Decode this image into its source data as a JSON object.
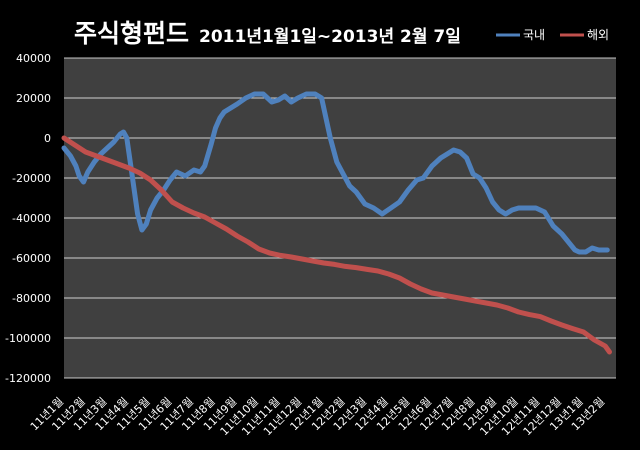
{
  "chart_data": {
    "type": "line",
    "title": "주식형펀드",
    "subtitle": "2011년1월1일~2013년 2월 7일",
    "ylim": [
      -120000,
      40000
    ],
    "yticks": [
      40000,
      20000,
      0,
      -20000,
      -40000,
      -60000,
      -80000,
      -100000,
      -120000
    ],
    "ytick_labels": [
      "40000",
      "20000",
      "0",
      "-20000",
      "-40000",
      "-60000",
      "-80000",
      "-100000",
      "-120000"
    ],
    "categories": [
      "11년1월",
      "11년2월",
      "11년3월",
      "11년4월",
      "11년5월",
      "11년6월",
      "11년7월",
      "11년8월",
      "11년9월",
      "11년10월",
      "11년11월",
      "11년12월",
      "12년1월",
      "12년2월",
      "12년3월",
      "12년4월",
      "12년5월",
      "12년6월",
      "12년7월",
      "12년8월",
      "12년9월",
      "12년10월",
      "12년11월",
      "12년12월",
      "13년1월",
      "13년2월"
    ],
    "legend_position": "top-right",
    "series": [
      {
        "name": "국내",
        "color": "#4F81BD",
        "x": [
          0,
          0.3,
          0.55,
          0.7,
          0.9,
          1.1,
          1.4,
          1.7,
          2.0,
          2.3,
          2.45,
          2.6,
          2.75,
          2.9,
          3.1,
          3.4,
          3.6,
          3.8,
          4.0,
          4.3,
          4.6,
          4.9,
          5.2,
          5.6,
          6.0,
          6.3,
          6.5,
          6.8,
          7.0,
          7.2,
          7.4,
          7.7,
          8.0,
          8.4,
          8.8,
          9.2,
          9.6,
          9.9,
          10.2,
          10.5,
          10.8,
          11.2,
          11.6,
          11.9,
          12.3,
          12.6,
          12.9,
          13.2,
          13.5,
          13.9,
          14.3,
          14.7,
          15.1,
          15.5,
          15.9,
          16.3,
          16.6,
          17.0,
          17.4,
          17.7,
          18.0,
          18.3,
          18.6,
          18.9,
          19.2,
          19.5,
          19.8,
          20.1,
          20.4,
          20.7,
          21.0,
          21.4,
          21.8,
          22.2,
          22.6,
          23.0,
          23.3,
          23.6,
          23.8,
          24.1,
          24.4,
          24.7,
          24.9,
          25.1
        ],
        "values": [
          -5000,
          -9000,
          -14000,
          -19000,
          -22000,
          -17000,
          -12000,
          -8000,
          -5000,
          -2000,
          0,
          2000,
          3000,
          0,
          -15000,
          -38000,
          -46000,
          -43000,
          -36000,
          -30000,
          -26000,
          -21000,
          -17000,
          -19000,
          -16000,
          -17000,
          -14000,
          -3000,
          5000,
          10000,
          13000,
          15000,
          17000,
          20000,
          22000,
          22000,
          18000,
          19000,
          21000,
          18000,
          20000,
          22000,
          22000,
          20000,
          0,
          -12000,
          -18000,
          -24000,
          -27000,
          -33000,
          -35000,
          -38000,
          -35000,
          -32000,
          -26000,
          -21000,
          -20000,
          -14000,
          -10000,
          -8000,
          -6000,
          -7000,
          -10000,
          -18000,
          -20000,
          -25000,
          -32000,
          -36000,
          -38000,
          -36000,
          -35000,
          -35000,
          -35000,
          -37000,
          -44000,
          -48000,
          -52000,
          -56000,
          -57000,
          -57000,
          -55000,
          -56000,
          -56000,
          -56000
        ]
      },
      {
        "name": "해외",
        "color": "#C0504D",
        "x": [
          0,
          0.5,
          1.0,
          1.5,
          2.0,
          2.5,
          3.0,
          3.5,
          4.0,
          4.5,
          5.0,
          5.5,
          6.0,
          6.5,
          7.0,
          7.5,
          8.0,
          8.5,
          9.0,
          9.5,
          10.0,
          10.5,
          11.0,
          11.5,
          12.0,
          12.5,
          13.0,
          13.5,
          14.0,
          14.5,
          15.0,
          15.5,
          16.0,
          16.5,
          17.0,
          17.5,
          18.0,
          18.5,
          19.0,
          19.5,
          20.0,
          20.5,
          21.0,
          21.5,
          22.0,
          22.5,
          23.0,
          23.5,
          24.0,
          24.5,
          25.0,
          25.2
        ],
        "values": [
          0,
          -3500,
          -7000,
          -9000,
          -11000,
          -13000,
          -15000,
          -17500,
          -21000,
          -26000,
          -32000,
          -35000,
          -37500,
          -39500,
          -42500,
          -45500,
          -49000,
          -52000,
          -55500,
          -57500,
          -58700,
          -59500,
          -60500,
          -61500,
          -62500,
          -63200,
          -64200,
          -64800,
          -65700,
          -66500,
          -68000,
          -70000,
          -73000,
          -75500,
          -77500,
          -78500,
          -79500,
          -80500,
          -81500,
          -82500,
          -83500,
          -85000,
          -87000,
          -88300,
          -89300,
          -91500,
          -93500,
          -95300,
          -97000,
          -101000,
          -104000,
          -107000
        ]
      }
    ]
  }
}
